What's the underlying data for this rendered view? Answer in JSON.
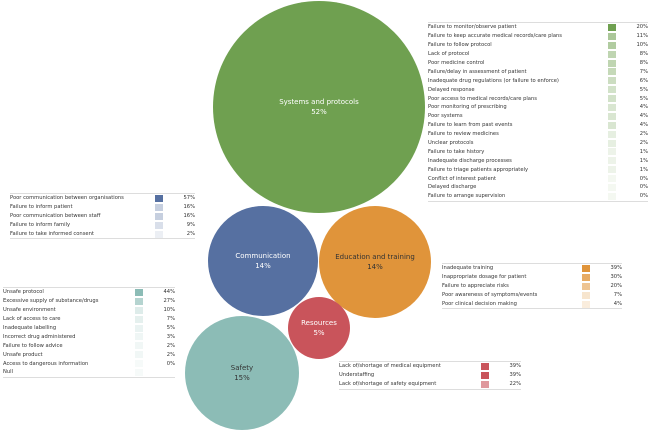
{
  "bubbles": [
    {
      "id": "systems",
      "label": "Systems and protocols",
      "pct": "52%",
      "color": "#6fa050",
      "text": "#fff"
    },
    {
      "id": "communication",
      "label": "Communication",
      "pct": "14%",
      "color": "#5670a1",
      "text": "#fff"
    },
    {
      "id": "education",
      "label": "Education and training",
      "pct": "14%",
      "color": "#e0943a",
      "text": "#333"
    },
    {
      "id": "resources",
      "label": "Resources",
      "pct": "5%",
      "color": "#c9545b",
      "text": "#fff"
    },
    {
      "id": "safety",
      "label": "Safety",
      "pct": "15%",
      "color": "#8cbcb6",
      "text": "#333"
    }
  ],
  "tables": {
    "systems": {
      "color": "#6fa050",
      "rows": [
        [
          "Failure to monitor/observe patient",
          "20%"
        ],
        [
          "Failure to keep accurate medical records/care plans",
          "11%"
        ],
        [
          "Failure to follow protocol",
          "10%"
        ],
        [
          "Lack of protocol",
          "8%"
        ],
        [
          "Poor medicine control",
          "8%"
        ],
        [
          "Failure/delay in assessment of patient",
          "7%"
        ],
        [
          "Inadequate drug regulations (or failure to enforce)",
          "6%"
        ],
        [
          "Delayed response",
          "5%"
        ],
        [
          "Poor access to medical records/care plans",
          "5%"
        ],
        [
          "Poor monitoring of prescribing",
          "4%"
        ],
        [
          "Poor systems",
          "4%"
        ],
        [
          "Failure to learn from past events",
          "4%"
        ],
        [
          "Failure to review medicines",
          "2%"
        ],
        [
          "Unclear protocols",
          "2%"
        ],
        [
          "Failure to take history",
          "1%"
        ],
        [
          "Inadequate discharge processes",
          "1%"
        ],
        [
          "Failure to triage patients appropriately",
          "1%"
        ],
        [
          "Conflict of interest patient",
          "0%"
        ],
        [
          "Delayed discharge",
          "0%"
        ],
        [
          "Failure to arrange supervision",
          "0%"
        ]
      ]
    },
    "communication": {
      "color": "#5670a1",
      "rows": [
        [
          "Poor communication between organisations",
          "57%"
        ],
        [
          "Failure to inform patient",
          "16%"
        ],
        [
          "Poor communication between staff",
          "16%"
        ],
        [
          "Failure to inform family",
          "9%"
        ],
        [
          "Failure to take informed consent",
          "2%"
        ]
      ]
    },
    "safety": {
      "color": "#8cbcb6",
      "rows": [
        [
          "Unsafe protocol",
          "44%"
        ],
        [
          "Excessive supply of substance/drugs",
          "27%"
        ],
        [
          "Unsafe environment",
          "10%"
        ],
        [
          "Lack of access to care",
          "7%"
        ],
        [
          "Inadequate labelling",
          "5%"
        ],
        [
          "Incorrect drug administered",
          "3%"
        ],
        [
          "Failure to follow advice",
          "2%"
        ],
        [
          "Unsafe product",
          "2%"
        ],
        [
          "Access to dangerous information",
          "0%"
        ],
        [
          "Null",
          ""
        ]
      ]
    },
    "education": {
      "color": "#e0943a",
      "rows": [
        [
          "Inadequate training",
          "39%"
        ],
        [
          "Inappropriate dosage for patient",
          "30%"
        ],
        [
          "Failure to appreciate risks",
          "20%"
        ],
        [
          "Poor awareness of symptoms/events",
          "7%"
        ],
        [
          "Poor clinical decision making",
          "4%"
        ]
      ]
    },
    "resources": {
      "color": "#c9545b",
      "rows": [
        [
          "Lack of/shortage of medical equipment",
          "39%"
        ],
        [
          "Understaffing",
          "39%"
        ],
        [
          "Lack of/shortage of safety equipment",
          "22%"
        ]
      ]
    }
  }
}
